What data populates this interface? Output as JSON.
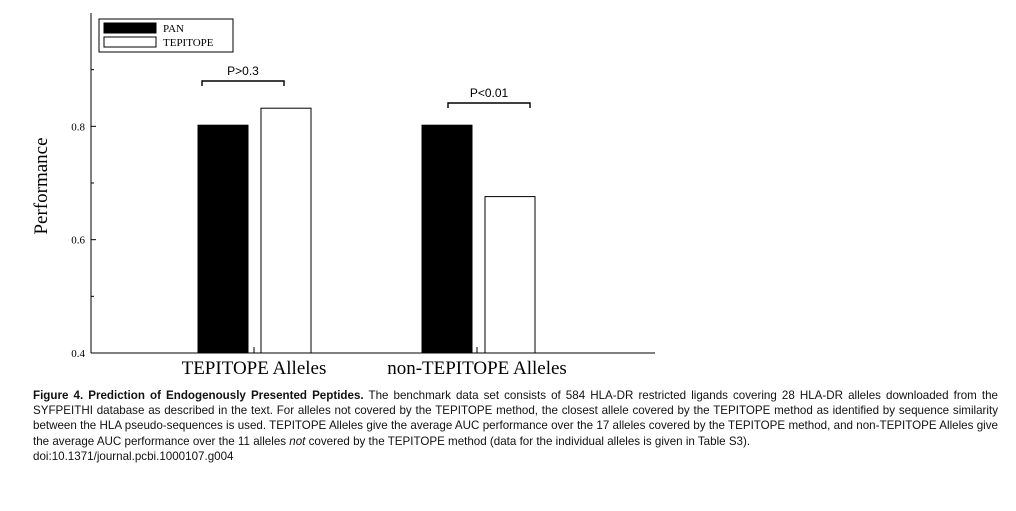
{
  "chart_data": {
    "type": "bar",
    "categories": [
      "TEPITOPE Alleles",
      "non-TEPITOPE Alleles"
    ],
    "series": [
      {
        "name": "PAN",
        "values": [
          0.802,
          0.802
        ],
        "color": "#000000"
      },
      {
        "name": "TEPITOPE",
        "values": [
          0.832,
          0.676
        ],
        "color": "#ffffff"
      }
    ],
    "ylabel": "Performance",
    "xlabel": "",
    "ylim": [
      0.4,
      1.0
    ],
    "yticks": [
      "0.4",
      "0.6",
      "0.8"
    ],
    "yticks_values": [
      0.4,
      0.6,
      0.8
    ],
    "legend_position": "top-left",
    "annotations": [
      "P>0.3",
      "P<0.01"
    ],
    "grid": false
  },
  "caption": {
    "title": "Figure 4. Prediction of Endogenously Presented Peptides.",
    "body_1": " The benchmark data set consists of 584 HLA-DR restricted ligands covering 28 HLA-DR alleles downloaded from the SYFPEITHI database as described in the text. For alleles not covered by the TEPITOPE method, the closest allele covered by the TEPITOPE method as identified by sequence similarity between the HLA pseudo-sequences is used. TEPITOPE Alleles give the average AUC performance over the 17 alleles covered by the TEPITOPE method, and non-TEPITOPE Alleles give the average AUC performance over the 11 alleles ",
    "emph": "not",
    "body_2": " covered by the TEPITOPE method (data for the individual alleles is given in Table S3).",
    "doi": "doi:10.1371/journal.pcbi.1000107.g004"
  }
}
